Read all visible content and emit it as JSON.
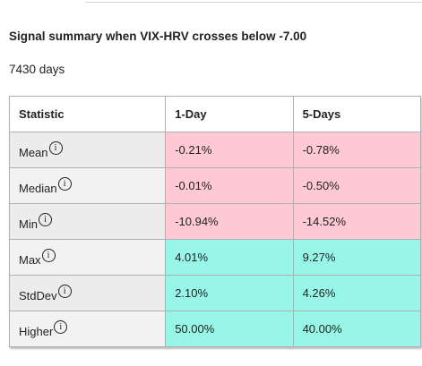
{
  "header": {
    "title": "Signal summary when VIX-HRV crosses below -7.00",
    "subtitle": "7430 days"
  },
  "table": {
    "columns": [
      "Statistic",
      "1-Day",
      "5-Days"
    ],
    "rows": [
      [
        "Mean",
        "-0.21%",
        "-0.78%"
      ],
      [
        "Median",
        "-0.01%",
        "-0.50%"
      ],
      [
        "Min",
        "-10.94%",
        "-14.52%"
      ],
      [
        "Max",
        "4.01%",
        "9.27%"
      ],
      [
        "StdDev",
        "2.10%",
        "4.26%"
      ],
      [
        "Higher",
        "50.00%",
        "40.00%"
      ]
    ]
  }
}
